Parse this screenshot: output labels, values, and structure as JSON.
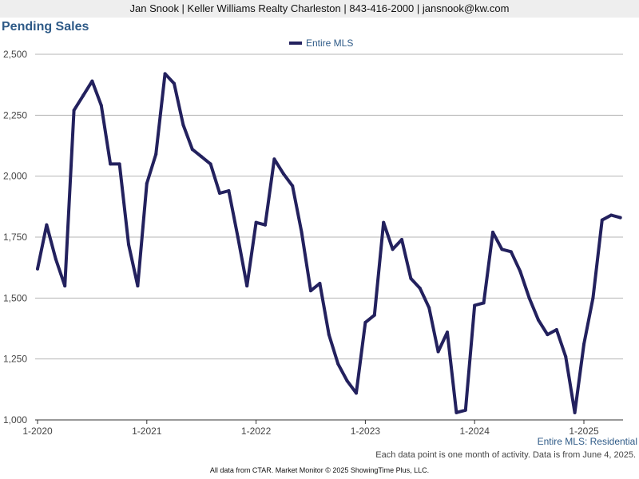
{
  "header": {
    "agent_line": "Jan Snook | Keller Williams Realty Charleston | 843-416-2000 | jansnook@kw.com"
  },
  "chart_data": {
    "type": "line",
    "title": "Pending Sales",
    "xlabel": "",
    "ylabel": "",
    "ylim": [
      1000,
      2500
    ],
    "yticks": [
      1000,
      1250,
      1500,
      1750,
      2000,
      2250,
      2500
    ],
    "ytick_labels": [
      "1,000",
      "1,250",
      "1,500",
      "1,750",
      "2,000",
      "2,250",
      "2,500"
    ],
    "xticks": [
      "1-2020",
      "1-2021",
      "1-2022",
      "1-2023",
      "1-2024",
      "1-2025"
    ],
    "x_start": "2020-01",
    "legend_position": "top-center",
    "grid": true,
    "series": [
      {
        "name": "Entire MLS",
        "color": "#23215e",
        "values": [
          1620,
          1800,
          1660,
          1550,
          2270,
          2330,
          2390,
          2290,
          2050,
          2050,
          1720,
          1550,
          1970,
          2090,
          2420,
          2380,
          2210,
          2110,
          2080,
          2050,
          1930,
          1940,
          1750,
          1550,
          1810,
          1800,
          2070,
          2010,
          1960,
          1770,
          1530,
          1560,
          1350,
          1230,
          1160,
          1110,
          1400,
          1430,
          1810,
          1700,
          1740,
          1580,
          1540,
          1460,
          1280,
          1360,
          1030,
          1040,
          1470,
          1480,
          1770,
          1700,
          1690,
          1610,
          1500,
          1410,
          1350,
          1370,
          1260,
          1030,
          1310,
          1500,
          1820,
          1840,
          1830
        ]
      }
    ]
  },
  "region_label": "Entire MLS: Residential",
  "footnote": "Each data point is one month of activity. Data is from June 4, 2025.",
  "credit": "All data from CTAR. Market Monitor © 2025 ShowingTime Plus, LLC."
}
